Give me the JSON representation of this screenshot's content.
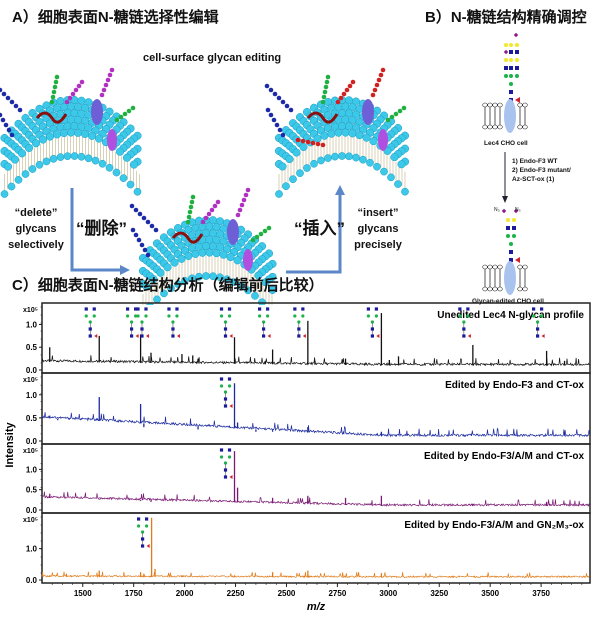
{
  "panel_a": {
    "title": "A）细胞表面N-糖链选择性编辑",
    "caption": "cell-surface glycan editing",
    "delete_en": [
      "“delete”",
      "glycans",
      "selectively"
    ],
    "delete_cn": "“删除”",
    "insert_cn": "“插入”",
    "insert_en": [
      "“insert”",
      "glycans",
      "precisely"
    ]
  },
  "panel_b": {
    "title": "B）N-糖链结构精确调控",
    "cell_before": "Lec4 CHO cell",
    "steps": [
      "1) Endo-F3 WT",
      "2) Endo-F3 mutant/",
      "Az-SCT-ox (1)"
    ],
    "azide_left": "N₃",
    "azide_right": "N₃",
    "cell_after": "Glycan-edited CHO cell"
  },
  "panel_c": {
    "title": "C）细胞表面N-糖链结构分析（编辑前后比较）"
  },
  "colors": {
    "membrane_head": "#3cc8e8",
    "glcnac": "#1a1a9a",
    "mannose": "#1db34a",
    "galactose": "#f2e92a",
    "sialic_acid": "#8e1c8e",
    "fucose": "#d0202a",
    "arrow": "#5b87c8"
  },
  "chart_data": {
    "type": "line",
    "xlabel": "m/z",
    "ylabel": "Intensity",
    "xlim": [
      1300,
      3990
    ],
    "xticks": [
      1500,
      1750,
      2000,
      2250,
      2500,
      2750,
      3000,
      3250,
      3500,
      3750
    ],
    "y_multiplier": "x10⁵",
    "grid": false,
    "panels": [
      {
        "name": "Unedited Lec4 N-glycan profile",
        "color": "#111111",
        "ylim": [
          0,
          1.45
        ],
        "yticks": [
          "0.0",
          "0.5",
          "1.0"
        ],
        "baseline": [
          0.18,
          0.1
        ],
        "peaks": [
          [
            1338,
            0.5
          ],
          [
            1377,
            0.2
          ],
          [
            1581,
            0.75
          ],
          [
            1784,
            0.78
          ],
          [
            1835,
            0.38
          ],
          [
            1987,
            0.35
          ],
          [
            2040,
            0.32
          ],
          [
            2066,
            0.25
          ],
          [
            2245,
            0.72
          ],
          [
            2396,
            0.2
          ],
          [
            2432,
            0.45
          ],
          [
            2605,
            1.08
          ],
          [
            2640,
            0.2
          ],
          [
            2790,
            0.25
          ],
          [
            2966,
            1.25
          ],
          [
            3005,
            0.22
          ],
          [
            3050,
            0.3
          ],
          [
            3415,
            0.55
          ],
          [
            3777,
            0.42
          ],
          [
            3865,
            0.2
          ]
        ],
        "glycan_annotations": [
          1581,
          1784,
          1835,
          1987,
          2245,
          2432,
          2605,
          2966,
          3415,
          3777
        ]
      },
      {
        "name": "Edited by Endo-F3 and CT-ox",
        "color": "#1c2a9e",
        "ylim": [
          0,
          1.45
        ],
        "yticks": [
          "0.0",
          "0.5",
          "1.0"
        ],
        "baseline": [
          0.5,
          0.1
        ],
        "peaks": [
          [
            1338,
            0.55
          ],
          [
            1377,
            0.45
          ],
          [
            1581,
            0.95
          ],
          [
            1784,
            0.8
          ],
          [
            1800,
            0.3
          ],
          [
            2066,
            0.25
          ],
          [
            2245,
            1.25
          ],
          [
            2260,
            0.4
          ],
          [
            2350,
            0.2
          ],
          [
            2432,
            0.2
          ],
          [
            2605,
            0.3
          ],
          [
            2966,
            0.2
          ],
          [
            3415,
            0.1
          ]
        ],
        "glycan_annotations": [
          2245
        ]
      },
      {
        "name": "Edited by Endo-F3/A/M and CT-ox",
        "color": "#7a1a72",
        "ylim": [
          0,
          1.6
        ],
        "yticks": [
          "0.0",
          "0.5",
          "1.0"
        ],
        "baseline": [
          0.3,
          0.1
        ],
        "peaks": [
          [
            1338,
            0.4
          ],
          [
            1581,
            0.25
          ],
          [
            1784,
            0.22
          ],
          [
            1835,
            0.2
          ],
          [
            2245,
            1.45
          ],
          [
            2260,
            0.55
          ],
          [
            2432,
            0.3
          ],
          [
            2605,
            0.35
          ],
          [
            2790,
            0.3
          ],
          [
            2966,
            0.35
          ],
          [
            3415,
            0.15
          ],
          [
            3777,
            0.2
          ]
        ],
        "glycan_annotations": [
          2245
        ]
      },
      {
        "name": "Edited by Endo-F3/A/M and GN₂M₃-ox",
        "color": "#e07b1a",
        "ylim": [
          0,
          2.1
        ],
        "yticks": [
          "0.0",
          "1.0"
        ],
        "baseline": [
          0.1,
          0.08
        ],
        "peaks": [
          [
            1338,
            0.15
          ],
          [
            1420,
            0.2
          ],
          [
            1581,
            0.3
          ],
          [
            1784,
            0.25
          ],
          [
            1800,
            0.2
          ],
          [
            1838,
            1.98
          ],
          [
            1855,
            0.35
          ],
          [
            1987,
            0.15
          ],
          [
            2245,
            0.15
          ],
          [
            2432,
            0.25
          ],
          [
            2605,
            0.3
          ],
          [
            2790,
            0.12
          ],
          [
            2966,
            0.22
          ],
          [
            3777,
            0.1
          ]
        ],
        "glycan_annotations": [
          1838
        ]
      }
    ]
  }
}
